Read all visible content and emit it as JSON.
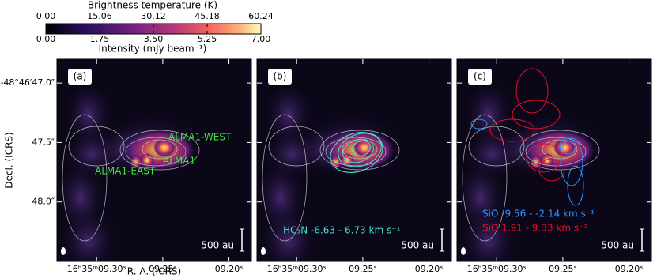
{
  "chart_data": {
    "type": "image",
    "colorbar": {
      "label_top": "Brightness temperature (K)",
      "top_lim": [
        0,
        60.24
      ],
      "top_ticks": [
        {
          "value": 0,
          "label": "0.00"
        },
        15.06,
        30.12,
        45.18,
        60.24
      ],
      "label_bottom": "Intensity (mJy beam⁻¹)",
      "bottom_lim": [
        0,
        7
      ],
      "bottom_ticks": [
        {
          "value": 0,
          "label": "0.00"
        },
        1.75,
        {
          "value": 3.5,
          "label": "3.50"
        },
        5.25,
        {
          "value": 7,
          "label": "7.00"
        }
      ]
    },
    "xlabel": "R. A. (ICRS)",
    "ylabel": "Decl. (ICRS)",
    "xlim": [
      9.33,
      9.183
    ],
    "xticks": [
      {
        "value": 9.3,
        "label": "16ʰ35ᵐ09.30ˢ"
      },
      {
        "value": 9.25,
        "label": "09.25ˢ"
      },
      {
        "value": 9.2,
        "label": "09.20ˢ"
      }
    ],
    "ylim": [
      46.8,
      48.5
    ],
    "yticks": [
      {
        "value": 47.0,
        "label": "-48°46′47.0″"
      },
      {
        "value": 47.5,
        "label": "47.5″"
      },
      {
        "value": 48.0,
        "label": "48.0″"
      }
    ],
    "scale_bar": "500 au",
    "panels": [
      {
        "label": "(a)",
        "annotations": [
          {
            "text": "ALMA1-WEST",
            "color": "#33ee33"
          },
          {
            "text": "ALMA1",
            "color": "#33ee33"
          },
          {
            "text": "ALMA1-EAST",
            "color": "#33ee33"
          }
        ]
      },
      {
        "label": "(b)",
        "annotations": [
          {
            "text": "HC₃N -6.63 - 6.73 km s⁻¹",
            "color": "#40e0c0"
          }
        ]
      },
      {
        "label": "(c)",
        "annotations": [
          {
            "text": "SiO -9.56 - -2.14 km s⁻¹",
            "color": "#2f95ff"
          },
          {
            "text": "SiO 1.91 - 9.33 km s⁻¹",
            "color": "#e0102a"
          }
        ]
      }
    ]
  }
}
